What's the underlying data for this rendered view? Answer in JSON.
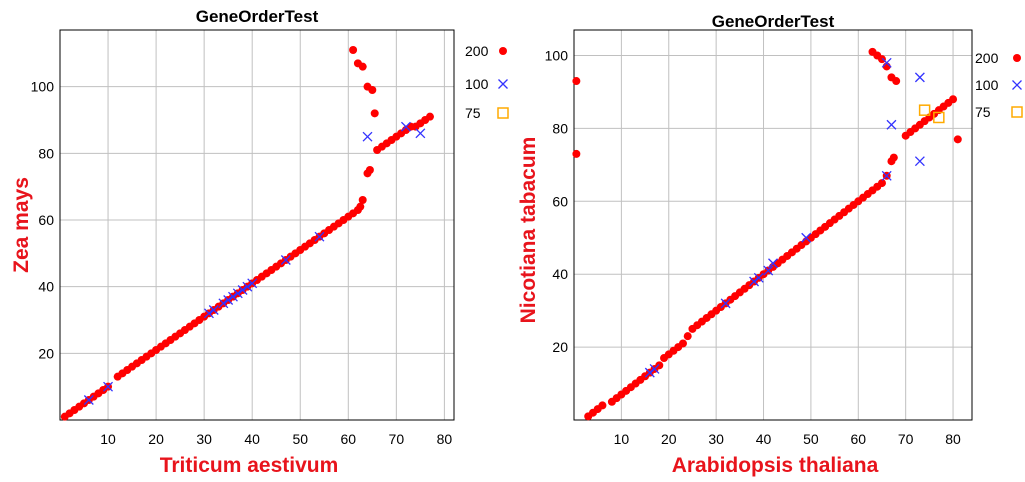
{
  "colors": {
    "s200": "#ff0000",
    "s100": "#3333ff",
    "s75": "#ffaa00",
    "axis_label": "#e8141c",
    "grid": "#c0c0c0"
  },
  "chart_data": [
    {
      "type": "scatter",
      "title": "GeneOrderTest",
      "xlabel": "Triticum aestivum",
      "ylabel": "Zea mays",
      "xlim": [
        0,
        82
      ],
      "ylim": [
        0,
        117
      ],
      "xticks": [
        10,
        20,
        30,
        40,
        50,
        60,
        70,
        80
      ],
      "yticks": [
        20,
        40,
        60,
        80,
        100
      ],
      "grid": true,
      "legend_position": "right",
      "series": [
        {
          "name": "200",
          "marker": "dot",
          "color": "#ff0000",
          "points": [
            [
              1,
              1
            ],
            [
              2,
              2
            ],
            [
              3,
              3
            ],
            [
              4,
              4
            ],
            [
              5,
              5
            ],
            [
              6,
              6
            ],
            [
              7,
              7
            ],
            [
              8,
              8
            ],
            [
              9,
              9
            ],
            [
              10,
              10
            ],
            [
              12,
              13
            ],
            [
              13,
              14
            ],
            [
              14,
              15
            ],
            [
              15,
              16
            ],
            [
              16,
              17
            ],
            [
              17,
              18
            ],
            [
              18,
              19
            ],
            [
              19,
              20
            ],
            [
              20,
              21
            ],
            [
              21,
              22
            ],
            [
              22,
              23
            ],
            [
              23,
              24
            ],
            [
              24,
              25
            ],
            [
              25,
              26
            ],
            [
              26,
              27
            ],
            [
              27,
              28
            ],
            [
              28,
              29
            ],
            [
              29,
              30
            ],
            [
              30,
              31
            ],
            [
              31,
              32
            ],
            [
              32,
              33
            ],
            [
              33,
              34
            ],
            [
              34,
              35
            ],
            [
              35,
              36
            ],
            [
              36,
              37
            ],
            [
              37,
              38
            ],
            [
              38,
              39
            ],
            [
              39,
              40
            ],
            [
              40,
              41
            ],
            [
              41,
              42
            ],
            [
              42,
              43
            ],
            [
              43,
              44
            ],
            [
              44,
              45
            ],
            [
              45,
              46
            ],
            [
              46,
              47
            ],
            [
              47,
              48
            ],
            [
              48,
              49
            ],
            [
              49,
              50
            ],
            [
              50,
              51
            ],
            [
              51,
              52
            ],
            [
              52,
              53
            ],
            [
              53,
              54
            ],
            [
              54,
              55
            ],
            [
              55,
              56
            ],
            [
              56,
              57
            ],
            [
              57,
              58
            ],
            [
              58,
              59
            ],
            [
              59,
              60
            ],
            [
              60,
              61
            ],
            [
              61,
              62
            ],
            [
              62,
              63
            ],
            [
              62.5,
              64
            ],
            [
              63,
              66
            ],
            [
              64,
              74
            ],
            [
              64.5,
              75
            ],
            [
              61,
              111
            ],
            [
              62,
              107
            ],
            [
              63,
              106
            ],
            [
              64,
              100
            ],
            [
              65,
              99
            ],
            [
              65.5,
              92
            ],
            [
              66,
              81
            ],
            [
              67,
              82
            ],
            [
              68,
              83
            ],
            [
              69,
              84
            ],
            [
              70,
              85
            ],
            [
              71,
              86
            ],
            [
              72,
              87
            ],
            [
              73,
              88
            ],
            [
              74,
              88
            ],
            [
              75,
              89
            ],
            [
              76,
              90
            ],
            [
              77,
              91
            ]
          ]
        },
        {
          "name": "100",
          "marker": "x",
          "color": "#3333ff",
          "points": [
            [
              6,
              6
            ],
            [
              10,
              10
            ],
            [
              31,
              32
            ],
            [
              32,
              33
            ],
            [
              34,
              35
            ],
            [
              35,
              36
            ],
            [
              36,
              37
            ],
            [
              37,
              38
            ],
            [
              38,
              39
            ],
            [
              39,
              40
            ],
            [
              40,
              41
            ],
            [
              47,
              48
            ],
            [
              54,
              55
            ],
            [
              64,
              85
            ],
            [
              72,
              88
            ],
            [
              75,
              86
            ]
          ]
        },
        {
          "name": "75",
          "marker": "square",
          "color": "#ffaa00",
          "points": []
        }
      ]
    },
    {
      "type": "scatter",
      "title": "GeneOrderTest",
      "xlabel": "Arabidopsis thaliana",
      "ylabel": "Nicotiana tabacum",
      "xlim": [
        0,
        84
      ],
      "ylim": [
        0,
        107
      ],
      "xticks": [
        10,
        20,
        30,
        40,
        50,
        60,
        70,
        80
      ],
      "yticks": [
        20,
        40,
        60,
        80,
        100
      ],
      "grid": true,
      "legend_position": "right",
      "series": [
        {
          "name": "200",
          "marker": "dot",
          "color": "#ff0000",
          "points": [
            [
              0.5,
              93
            ],
            [
              0.5,
              73
            ],
            [
              3,
              1
            ],
            [
              4,
              2
            ],
            [
              5,
              3
            ],
            [
              6,
              4
            ],
            [
              8,
              5
            ],
            [
              9,
              6
            ],
            [
              10,
              7
            ],
            [
              11,
              8
            ],
            [
              12,
              9
            ],
            [
              13,
              10
            ],
            [
              14,
              11
            ],
            [
              15,
              12
            ],
            [
              16,
              13
            ],
            [
              17,
              14
            ],
            [
              18,
              15
            ],
            [
              19,
              17
            ],
            [
              20,
              18
            ],
            [
              21,
              19
            ],
            [
              22,
              20
            ],
            [
              23,
              21
            ],
            [
              24,
              23
            ],
            [
              25,
              25
            ],
            [
              26,
              26
            ],
            [
              27,
              27
            ],
            [
              28,
              28
            ],
            [
              29,
              29
            ],
            [
              30,
              30
            ],
            [
              31,
              31
            ],
            [
              32,
              32
            ],
            [
              33,
              33
            ],
            [
              34,
              34
            ],
            [
              35,
              35
            ],
            [
              36,
              36
            ],
            [
              37,
              37
            ],
            [
              38,
              38
            ],
            [
              39,
              39
            ],
            [
              40,
              40
            ],
            [
              41,
              41
            ],
            [
              42,
              42
            ],
            [
              43,
              43
            ],
            [
              44,
              44
            ],
            [
              45,
              45
            ],
            [
              46,
              46
            ],
            [
              47,
              47
            ],
            [
              48,
              48
            ],
            [
              49,
              49
            ],
            [
              50,
              50
            ],
            [
              51,
              51
            ],
            [
              52,
              52
            ],
            [
              53,
              53
            ],
            [
              54,
              54
            ],
            [
              55,
              55
            ],
            [
              56,
              56
            ],
            [
              57,
              57
            ],
            [
              58,
              58
            ],
            [
              59,
              59
            ],
            [
              60,
              60
            ],
            [
              61,
              61
            ],
            [
              62,
              62
            ],
            [
              63,
              63
            ],
            [
              64,
              64
            ],
            [
              65,
              65
            ],
            [
              66,
              67
            ],
            [
              67,
              71
            ],
            [
              67.5,
              72
            ],
            [
              63,
              101
            ],
            [
              64,
              100
            ],
            [
              65,
              99
            ],
            [
              66,
              97
            ],
            [
              67,
              94
            ],
            [
              68,
              93
            ],
            [
              70,
              78
            ],
            [
              71,
              79
            ],
            [
              72,
              80
            ],
            [
              73,
              81
            ],
            [
              74,
              82
            ],
            [
              75,
              83
            ],
            [
              76,
              84
            ],
            [
              77,
              85
            ],
            [
              78,
              86
            ],
            [
              79,
              87
            ],
            [
              80,
              88
            ],
            [
              81,
              77
            ]
          ]
        },
        {
          "name": "100",
          "marker": "x",
          "color": "#3333ff",
          "points": [
            [
              16,
              13
            ],
            [
              17,
              14
            ],
            [
              32,
              32
            ],
            [
              38,
              38
            ],
            [
              39,
              39
            ],
            [
              41,
              41
            ],
            [
              42,
              43
            ],
            [
              49,
              50
            ],
            [
              66,
              67
            ],
            [
              66,
              98
            ],
            [
              67,
              81
            ],
            [
              73,
              94
            ],
            [
              73,
              71
            ]
          ]
        },
        {
          "name": "75",
          "marker": "square",
          "color": "#ffaa00",
          "points": [
            [
              74,
              85
            ],
            [
              77,
              83
            ]
          ]
        }
      ]
    }
  ]
}
